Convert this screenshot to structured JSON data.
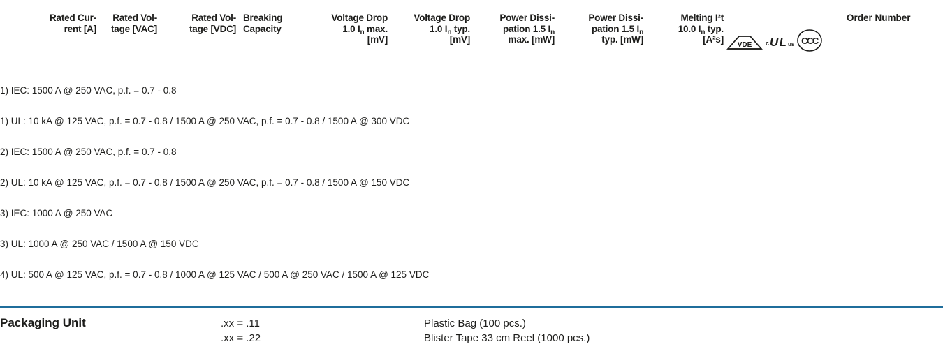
{
  "header": {
    "columns": [
      {
        "lines": [
          "Rated Cur-",
          "rent [A]"
        ]
      },
      {
        "lines": [
          "Rated Vol-",
          "tage [VAC]"
        ]
      },
      {
        "lines": [
          "Rated Vol-",
          "tage [VDC]"
        ]
      },
      {
        "lines": [
          "Breaking",
          "Capacity"
        ]
      },
      {
        "lines": [
          "Voltage Drop",
          "1.0 I",
          "n",
          " max.",
          "[mV]"
        ]
      },
      {
        "lines": [
          "Voltage Drop",
          "1.0 I",
          "n",
          " typ.",
          "[mV]"
        ]
      },
      {
        "lines": [
          "Power Dissi-",
          "pation 1.5 I",
          "n",
          "max. [mW]"
        ]
      },
      {
        "lines": [
          "Power Dissi-",
          "pation 1.5 I",
          "n",
          "typ. [mW]"
        ]
      },
      {
        "lines": [
          "Melting I²t",
          "10.0 I",
          "n",
          " typ.",
          "[A²s]"
        ]
      }
    ],
    "certifications": {
      "vde_label": "VDE",
      "ul_prefix": "c",
      "ul_mark": "UL",
      "ul_suffix": "us",
      "ccc_label": "CCC"
    },
    "order_number": "Order Number"
  },
  "footnotes": [
    "1) IEC: 1500 A @ 250 VAC, p.f. = 0.7 - 0.8",
    "1) UL: 10 kA @ 125 VAC, p.f. = 0.7 - 0.8 / 1500 A @ 250 VAC, p.f. = 0.7 - 0.8 / 1500 A @ 300 VDC",
    "2) IEC: 1500 A @ 250 VAC, p.f. = 0.7 - 0.8",
    "2) UL: 10 kA @ 125 VAC, p.f. = 0.7 - 0.8 / 1500 A @ 250 VAC, p.f. = 0.7 - 0.8 / 1500 A @ 150 VDC",
    "3) IEC: 1000 A @ 250 VAC",
    "3) UL: 1000 A @ 250 VAC / 1500 A @ 150 VDC",
    "4) UL: 500 A @ 125 VAC, p.f. = 0.7 - 0.8 / 1000 A @ 125 VAC / 500 A @ 250 VAC / 1500 A @ 125 VDC"
  ],
  "packaging": {
    "title": "Packaging Unit",
    "rows": [
      {
        "code": ".xx = .11",
        "description": "Plastic Bag (100 pcs.)"
      },
      {
        "code": ".xx = .22",
        "description": "Blister Tape 33 cm Reel (1000 pcs.)"
      }
    ]
  }
}
